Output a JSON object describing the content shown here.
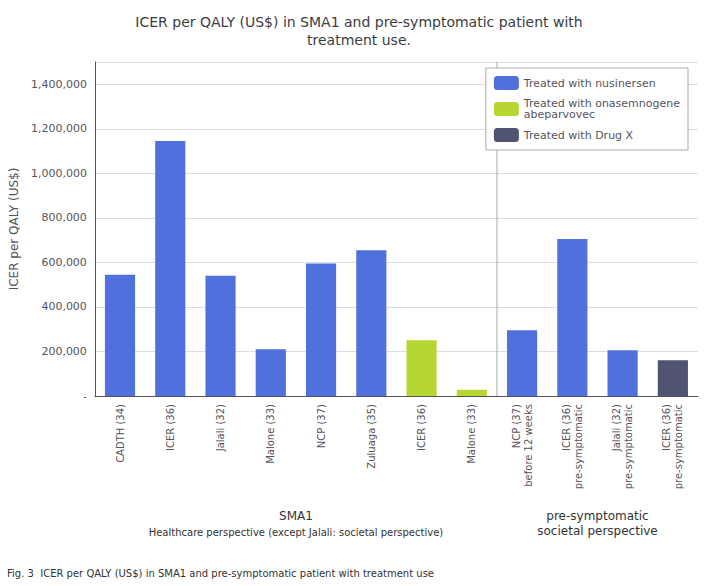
{
  "chart_data": {
    "type": "bar",
    "title": "ICER per QALY (US$) in SMA1 and pre-symptomatic patient with\ntreatment use.",
    "ylabel": "ICER per QALY (US$)",
    "categories": [
      "CADTH (34)",
      "ICER (36)",
      "Jalali (32)",
      "Malone (33)",
      "NCP (37)",
      "Zuluaga (35)",
      "ICER (36)",
      "Malone (33)",
      "NCP (37)\nbefore 12 weeks",
      "ICER (36)\npre-symptomatic",
      "Jalali (32)\npre-symptomatic",
      "ICER (36)\npre-symptomatic"
    ],
    "series": [
      {
        "name": "Treated with nusinersen",
        "values": [
          545000,
          1145000,
          540000,
          210000,
          595000,
          655000,
          null,
          null,
          295000,
          705000,
          205000,
          null
        ]
      },
      {
        "name": "Treated with onasemnogene\nabeparvovec",
        "values": [
          null,
          null,
          null,
          null,
          null,
          null,
          250000,
          28000,
          null,
          null,
          null,
          null
        ]
      },
      {
        "name": "Treated with Drug X",
        "values": [
          null,
          null,
          null,
          null,
          null,
          null,
          null,
          null,
          null,
          null,
          null,
          160000
        ]
      }
    ],
    "ylim": [
      0,
      1500000
    ],
    "yticks": [
      {
        "value": 0,
        "label": "-"
      },
      {
        "value": 200000,
        "label": "200,000"
      },
      {
        "value": 400000,
        "label": "400,000"
      },
      {
        "value": 600000,
        "label": "600,000"
      },
      {
        "value": 800000,
        "label": "800,000"
      },
      {
        "value": 1000000,
        "label": "1,000,000"
      },
      {
        "value": 1200000,
        "label": "1,200,000"
      },
      {
        "value": 1400000,
        "label": "1,400,000"
      }
    ],
    "grid": true,
    "legend": "upper right",
    "annotations": [
      "SMA1",
      "Healthcare perspective (except Jalali: societal perspective)",
      "pre-symptomatic\nsocietal perspective"
    ],
    "caption": "Fig. 3  ICER per QALY (US$) in SMA1 and pre-symptomatic patient with treatment use"
  }
}
